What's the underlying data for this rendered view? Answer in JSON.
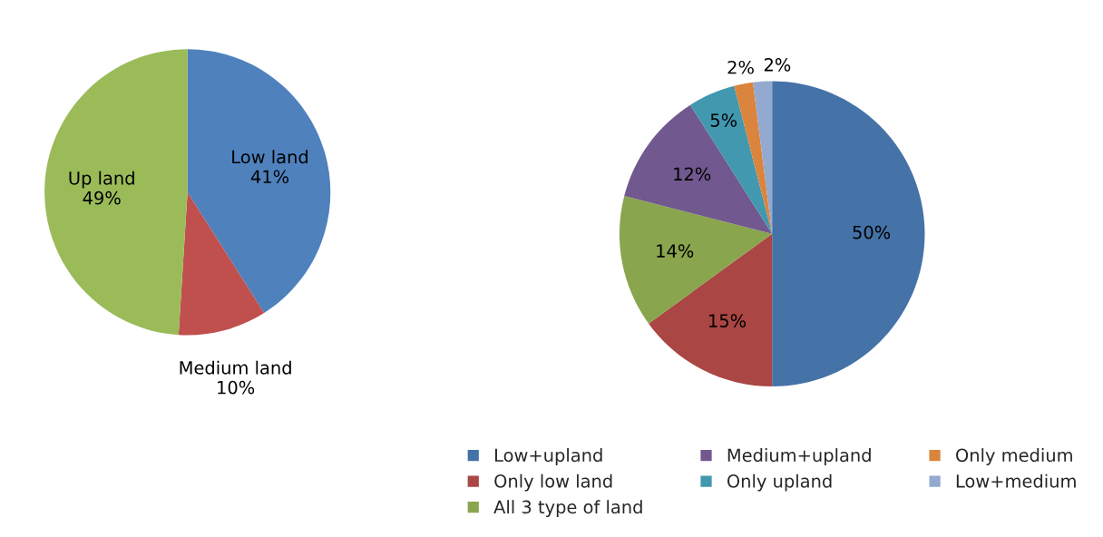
{
  "chart_data": [
    {
      "type": "pie",
      "categories": [
        "Low land",
        "Medium land",
        "Up land"
      ],
      "values": [
        41,
        10,
        49
      ],
      "value_labels": [
        "41%",
        "10%",
        "49%"
      ],
      "colors": [
        "#4f81bd",
        "#c0504d",
        "#9bbb59"
      ],
      "legend": false
    },
    {
      "type": "pie",
      "categories": [
        "Low+upland",
        "Only low land",
        "All 3 type of land",
        "Medium+upland",
        "Only upland",
        "Only medium",
        "Low+medium"
      ],
      "values": [
        50,
        15,
        14,
        12,
        5,
        2,
        2
      ],
      "value_labels": [
        "50%",
        "15%",
        "14%",
        "12%",
        "5%",
        "2%",
        "2%"
      ],
      "colors": [
        "#4572a7",
        "#aa4643",
        "#89a54e",
        "#71588f",
        "#4198af",
        "#db843d",
        "#93a9cf"
      ],
      "legend": "bottom"
    }
  ]
}
